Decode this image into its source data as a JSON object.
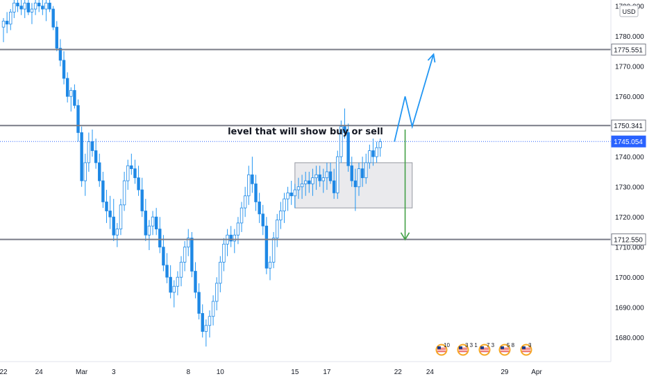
{
  "chart_data": {
    "type": "candlestick",
    "currency": "USD",
    "ylim": [
      1672,
      1792
    ],
    "y_ticks": [
      "1790.000",
      "1780.000",
      "1770.000",
      "1760.000",
      "1750.000",
      "1740.000",
      "1730.000",
      "1720.000",
      "1710.000",
      "1700.000",
      "1690.000",
      "1680.000"
    ],
    "y_tick_values": [
      1790,
      1780,
      1770,
      1760,
      1750,
      1740,
      1730,
      1720,
      1710,
      1700,
      1690,
      1680
    ],
    "x_ticks": [
      "22",
      "24",
      "Mar",
      "3",
      "8",
      "10",
      "15",
      "17",
      "22",
      "24",
      "29",
      "Apr"
    ],
    "x_tick_index": [
      0,
      10,
      22,
      31,
      52,
      61,
      82,
      91,
      111,
      120,
      141,
      150
    ],
    "levels": [
      {
        "label": "1775.551",
        "value": 1775.551,
        "style": "solid",
        "color": "#787b86"
      },
      {
        "label": "1750.341",
        "value": 1750.341,
        "style": "solid",
        "color": "#787b86"
      },
      {
        "label": "1712.550",
        "value": 1712.55,
        "style": "solid",
        "color": "#787b86"
      },
      {
        "label": "1745.054",
        "value": 1745.054,
        "style": "dotted",
        "color": "#2962ff"
      }
    ],
    "annotation": "level that will show buy or sell",
    "consolidation_zone": {
      "x_from": 82,
      "x_to": 115,
      "y_low": 1723,
      "y_high": 1738
    },
    "bull_path": [
      [
        110,
        1745
      ],
      [
        113,
        1760
      ],
      [
        115,
        1750
      ],
      [
        121,
        1774
      ]
    ],
    "bear_arrow": {
      "x": 113,
      "from": 1749,
      "to": 1712.5
    },
    "events": [
      "10",
      "3 3 1",
      "7 3",
      "5 8",
      "3"
    ],
    "candles": [
      [
        1783,
        1786,
        1778,
        1785
      ],
      [
        1785,
        1788,
        1781,
        1784
      ],
      [
        1784,
        1789,
        1782,
        1788
      ],
      [
        1788,
        1792,
        1786,
        1791
      ],
      [
        1791,
        1792,
        1788,
        1790
      ],
      [
        1790,
        1792,
        1787,
        1789
      ],
      [
        1789,
        1792,
        1786,
        1791
      ],
      [
        1791,
        1792,
        1787,
        1788
      ],
      [
        1788,
        1791,
        1784,
        1789
      ],
      [
        1789,
        1792,
        1787,
        1791
      ],
      [
        1791,
        1792,
        1788,
        1790
      ],
      [
        1790,
        1792,
        1787,
        1789
      ],
      [
        1789,
        1792,
        1785,
        1791
      ],
      [
        1791,
        1792,
        1788,
        1789
      ],
      [
        1789,
        1790,
        1782,
        1783
      ],
      [
        1783,
        1785,
        1775,
        1776
      ],
      [
        1776,
        1779,
        1770,
        1772
      ],
      [
        1772,
        1775,
        1764,
        1766
      ],
      [
        1766,
        1768,
        1758,
        1760
      ],
      [
        1760,
        1763,
        1755,
        1762
      ],
      [
        1762,
        1764,
        1756,
        1757
      ],
      [
        1757,
        1759,
        1745,
        1748
      ],
      [
        1748,
        1750,
        1730,
        1732
      ],
      [
        1732,
        1741,
        1727,
        1738
      ],
      [
        1738,
        1748,
        1735,
        1745
      ],
      [
        1745,
        1749,
        1740,
        1742
      ],
      [
        1742,
        1746,
        1736,
        1738
      ],
      [
        1738,
        1741,
        1730,
        1732
      ],
      [
        1732,
        1735,
        1723,
        1725
      ],
      [
        1725,
        1729,
        1718,
        1722
      ],
      [
        1722,
        1727,
        1716,
        1720
      ],
      [
        1720,
        1726,
        1712,
        1714
      ],
      [
        1714,
        1718,
        1710,
        1716
      ],
      [
        1716,
        1726,
        1714,
        1724
      ],
      [
        1724,
        1735,
        1722,
        1732
      ],
      [
        1732,
        1739,
        1729,
        1737
      ],
      [
        1737,
        1741,
        1734,
        1736
      ],
      [
        1736,
        1739,
        1731,
        1733
      ],
      [
        1733,
        1737,
        1727,
        1729
      ],
      [
        1729,
        1733,
        1720,
        1722
      ],
      [
        1722,
        1726,
        1712,
        1714
      ],
      [
        1714,
        1719,
        1709,
        1717
      ],
      [
        1717,
        1722,
        1714,
        1720
      ],
      [
        1720,
        1723,
        1714,
        1716
      ],
      [
        1716,
        1720,
        1708,
        1710
      ],
      [
        1710,
        1714,
        1702,
        1704
      ],
      [
        1704,
        1708,
        1698,
        1700
      ],
      [
        1700,
        1704,
        1693,
        1695
      ],
      [
        1695,
        1699,
        1690,
        1697
      ],
      [
        1697,
        1702,
        1694,
        1700
      ],
      [
        1700,
        1707,
        1697,
        1705
      ],
      [
        1705,
        1712,
        1702,
        1710
      ],
      [
        1710,
        1716,
        1707,
        1713
      ],
      [
        1713,
        1715,
        1700,
        1702
      ],
      [
        1702,
        1705,
        1693,
        1695
      ],
      [
        1695,
        1698,
        1686,
        1688
      ],
      [
        1688,
        1691,
        1680,
        1682
      ],
      [
        1682,
        1686,
        1677,
        1684
      ],
      [
        1684,
        1689,
        1680,
        1687
      ],
      [
        1687,
        1694,
        1684,
        1692
      ],
      [
        1692,
        1700,
        1689,
        1698
      ],
      [
        1698,
        1707,
        1695,
        1705
      ],
      [
        1705,
        1713,
        1702,
        1711
      ],
      [
        1711,
        1716,
        1707,
        1714
      ],
      [
        1714,
        1717,
        1710,
        1712
      ],
      [
        1712,
        1716,
        1708,
        1714
      ],
      [
        1714,
        1720,
        1711,
        1718
      ],
      [
        1718,
        1725,
        1715,
        1723
      ],
      [
        1723,
        1730,
        1720,
        1727
      ],
      [
        1727,
        1737,
        1724,
        1734
      ],
      [
        1734,
        1740,
        1728,
        1731
      ],
      [
        1731,
        1734,
        1722,
        1725
      ],
      [
        1725,
        1728,
        1718,
        1721
      ],
      [
        1721,
        1724,
        1714,
        1717
      ],
      [
        1717,
        1720,
        1701,
        1703
      ],
      [
        1703,
        1707,
        1699,
        1705
      ],
      [
        1705,
        1715,
        1703,
        1713
      ],
      [
        1713,
        1721,
        1710,
        1719
      ],
      [
        1719,
        1725,
        1716,
        1722
      ],
      [
        1722,
        1728,
        1718,
        1726
      ],
      [
        1726,
        1730,
        1722,
        1728
      ],
      [
        1728,
        1732,
        1724,
        1727
      ],
      [
        1727,
        1731,
        1723,
        1729
      ],
      [
        1729,
        1733,
        1726,
        1730
      ],
      [
        1730,
        1734,
        1726,
        1731
      ],
      [
        1731,
        1735,
        1727,
        1732
      ],
      [
        1732,
        1735,
        1728,
        1731
      ],
      [
        1731,
        1736,
        1727,
        1733
      ],
      [
        1733,
        1737,
        1729,
        1734
      ],
      [
        1734,
        1737,
        1730,
        1732
      ],
      [
        1732,
        1736,
        1728,
        1733
      ],
      [
        1733,
        1738,
        1729,
        1735
      ],
      [
        1735,
        1738,
        1731,
        1732
      ],
      [
        1732,
        1736,
        1726,
        1728
      ],
      [
        1728,
        1742,
        1726,
        1740
      ],
      [
        1740,
        1752,
        1738,
        1750
      ],
      [
        1750,
        1756,
        1746,
        1748
      ],
      [
        1748,
        1751,
        1735,
        1737
      ],
      [
        1737,
        1740,
        1730,
        1732
      ],
      [
        1732,
        1736,
        1722,
        1730
      ],
      [
        1730,
        1738,
        1727,
        1736
      ],
      [
        1736,
        1740,
        1730,
        1733
      ],
      [
        1733,
        1741,
        1731,
        1738
      ],
      [
        1738,
        1744,
        1736,
        1742
      ],
      [
        1742,
        1746,
        1737,
        1740
      ],
      [
        1740,
        1745,
        1738,
        1743
      ],
      [
        1743,
        1746,
        1740,
        1745
      ]
    ]
  }
}
